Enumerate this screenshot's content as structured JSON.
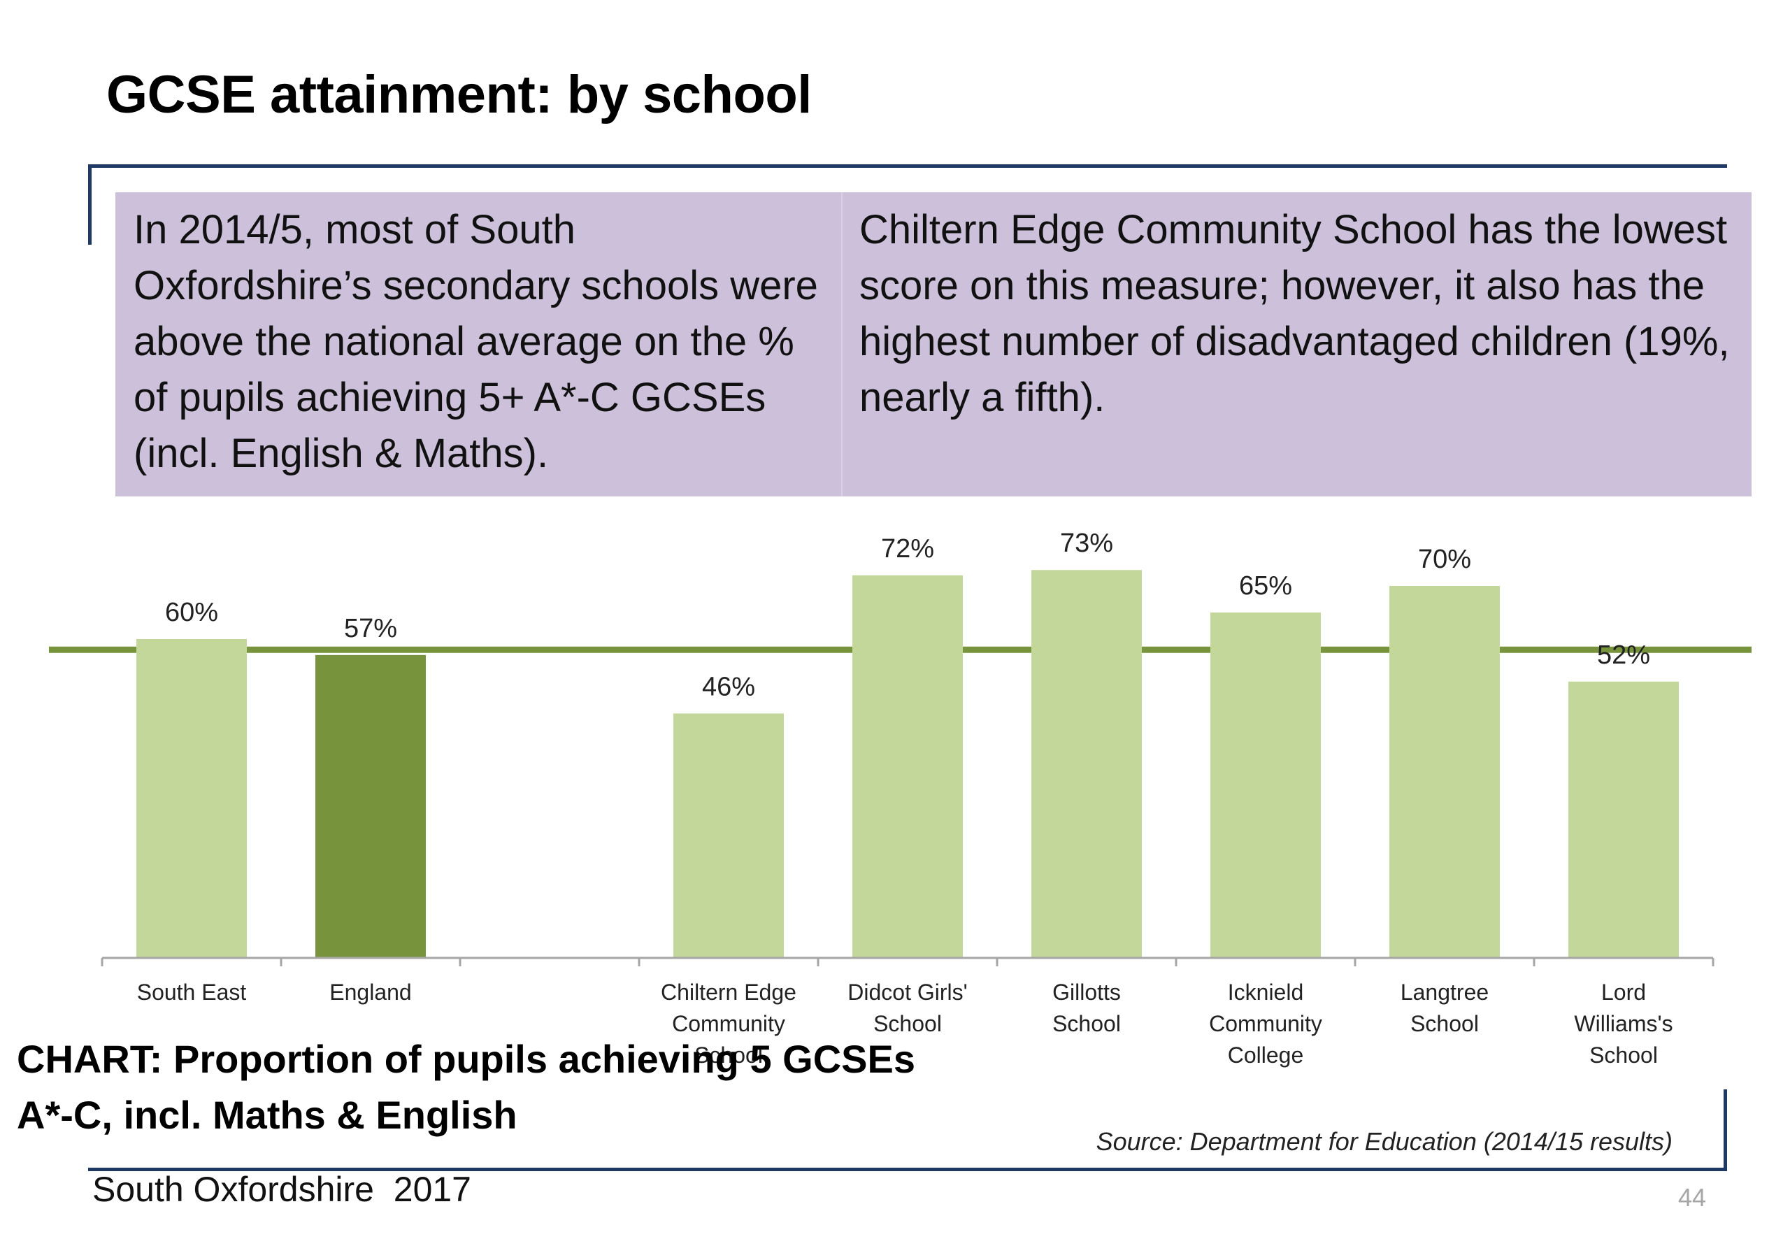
{
  "slide": {
    "title": "GCSE attainment: by school",
    "callout_left": "In 2014/5, most of South Oxfordshire’s secondary schools were above the national average on the % of pupils achieving 5+ A*-C GCSEs (incl. English & Maths).",
    "callout_right": "Chiltern Edge Community School has the lowest score on this measure; however, it also has the highest number of disadvantaged children (19%, nearly a fifth).",
    "chart_caption": "CHART: Proportion of pupils achieving 5 GCSEs A*-C, incl. Maths & English",
    "source": "Source: Department for Education (2014/15 results)",
    "footer": "South Oxfordshire  2017",
    "page_number": "44"
  },
  "chart_data": {
    "type": "bar",
    "categories": [
      "South East",
      "England",
      "",
      "Chiltern Edge Community School",
      "Didcot Girls' School",
      "Gillotts School",
      "Icknield Community College",
      "Langtree School",
      "Lord Williams's School"
    ],
    "values": [
      60,
      57,
      null,
      46,
      72,
      73,
      65,
      70,
      52
    ],
    "data_labels": [
      "60%",
      "57%",
      "",
      "46%",
      "72%",
      "73%",
      "65%",
      "70%",
      "52%"
    ],
    "bar_colors": [
      "#c4d79b",
      "#77933c",
      "#c4d79b",
      "#c4d79b",
      "#c4d79b",
      "#c4d79b",
      "#c4d79b",
      "#c4d79b",
      "#c4d79b"
    ],
    "reference_line": {
      "value": 58,
      "color": "#77933c"
    },
    "ylim": [
      0,
      100
    ],
    "grid": false,
    "legend": "none"
  }
}
